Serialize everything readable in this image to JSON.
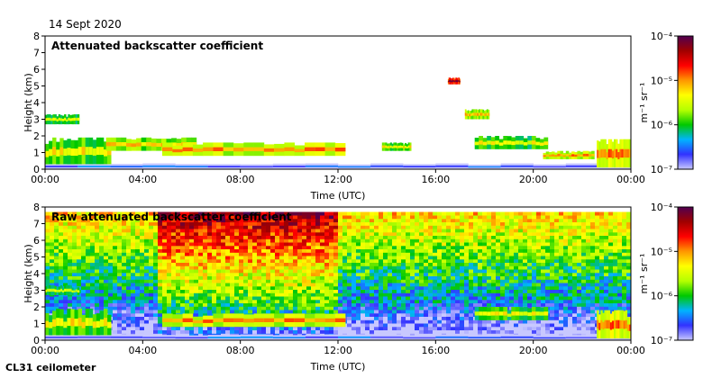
{
  "header": {
    "date": "14 Sept 2020"
  },
  "footer": {
    "instrument": "CL31 ceilometer"
  },
  "colors": {
    "scale": [
      "#c8c8ff",
      "#3232ff",
      "#00b4ff",
      "#00c800",
      "#b4ff00",
      "#ffff00",
      "#ff9600",
      "#ff0000",
      "#a00000",
      "#500050"
    ]
  },
  "chart_data": [
    {
      "type": "heatmap",
      "title": "Attenuated backscatter coefficient",
      "xlabel": "Time (UTC)",
      "ylabel": "Height (km)",
      "xlim": [
        0,
        24
      ],
      "ylim": [
        0,
        8
      ],
      "x_ticks": [
        "00:00",
        "04:00",
        "08:00",
        "12:00",
        "16:00",
        "20:00",
        "00:00"
      ],
      "y_ticks": [
        "0",
        "1",
        "2",
        "3",
        "4",
        "5",
        "6",
        "7",
        "8"
      ],
      "colorbar": {
        "label": "m⁻¹ sr⁻¹",
        "ticks": [
          "10⁻⁷",
          "10⁻⁶",
          "10⁻⁵",
          "10⁻⁴"
        ],
        "log_range": [
          -7,
          -4
        ]
      },
      "noise_fill": false,
      "layers": [
        {
          "name": "boundary layer aerosol",
          "t_start": 0.0,
          "t_end": 24.0,
          "h_base": 0.0,
          "h_top": 0.35,
          "log_value": -6.6
        },
        {
          "name": "low cloud 00-02",
          "t_start": 0.0,
          "t_end": 2.7,
          "h_base": 0.3,
          "h_top": 1.9,
          "log_value": -5.3
        },
        {
          "name": "cloud 00-01 at 3 km",
          "t_start": 0.0,
          "t_end": 1.4,
          "h_base": 2.7,
          "h_top": 3.3,
          "log_value": -5.5
        },
        {
          "name": "cloud 02-06 at 1.5 km",
          "t_start": 2.5,
          "t_end": 6.2,
          "h_base": 1.1,
          "h_top": 1.9,
          "log_value": -5.2
        },
        {
          "name": "cloud 05-12 at 1.2 km",
          "t_start": 4.8,
          "t_end": 12.3,
          "h_base": 0.8,
          "h_top": 1.6,
          "log_value": -5.0
        },
        {
          "name": "cloud 14 at 1.4 km",
          "t_start": 13.8,
          "t_end": 15.0,
          "h_base": 1.1,
          "h_top": 1.6,
          "log_value": -5.3
        },
        {
          "name": "cloud 16-17 at 5.4 km",
          "t_start": 16.5,
          "t_end": 17.0,
          "h_base": 5.1,
          "h_top": 5.5,
          "log_value": -4.2
        },
        {
          "name": "cloud 17 at 3.4 km",
          "t_start": 17.2,
          "t_end": 18.2,
          "h_base": 3.0,
          "h_top": 3.6,
          "log_value": -5.1
        },
        {
          "name": "cloud 18-20 at 1.7 km",
          "t_start": 17.6,
          "t_end": 20.6,
          "h_base": 1.2,
          "h_top": 2.0,
          "log_value": -5.4
        },
        {
          "name": "cloud 20-22 at 0.8 km",
          "t_start": 20.4,
          "t_end": 22.5,
          "h_base": 0.6,
          "h_top": 1.1,
          "log_value": -5.0
        },
        {
          "name": "low cloud 23-24",
          "t_start": 22.6,
          "t_end": 24.0,
          "h_base": 0.1,
          "h_top": 1.8,
          "log_value": -4.9
        }
      ]
    },
    {
      "type": "heatmap",
      "title": "Raw attenuated backscatter coefficient",
      "xlabel": "Time (UTC)",
      "ylabel": "Height (km)",
      "xlim": [
        0,
        24
      ],
      "ylim": [
        0,
        8
      ],
      "x_ticks": [
        "00:00",
        "04:00",
        "08:00",
        "12:00",
        "16:00",
        "20:00",
        "00:00"
      ],
      "y_ticks": [
        "0",
        "1",
        "2",
        "3",
        "4",
        "5",
        "6",
        "7",
        "8"
      ],
      "colorbar": {
        "label": "m⁻¹ sr⁻¹",
        "ticks": [
          "10⁻⁷",
          "10⁻⁶",
          "10⁻⁵",
          "10⁻⁴"
        ],
        "log_range": [
          -7,
          -4
        ]
      },
      "noise_fill": true,
      "noise_top_km": 7.7,
      "noisy_period": {
        "t_start": 4.7,
        "t_end": 12.0
      },
      "layers": [
        {
          "name": "boundary layer aerosol",
          "t_start": 0.0,
          "t_end": 24.0,
          "h_base": 0.0,
          "h_top": 0.35,
          "log_value": -6.6
        },
        {
          "name": "low cloud 00-02",
          "t_start": 0.0,
          "t_end": 2.7,
          "h_base": 0.3,
          "h_top": 1.9,
          "log_value": -5.3
        },
        {
          "name": "cloud 00-01 at 3 km",
          "t_start": 0.0,
          "t_end": 1.4,
          "h_base": 2.7,
          "h_top": 3.3,
          "log_value": -5.5
        },
        {
          "name": "cloud 05-12 at 1.2 km",
          "t_start": 4.8,
          "t_end": 12.3,
          "h_base": 0.8,
          "h_top": 1.6,
          "log_value": -5.0
        },
        {
          "name": "cloud 18-20 at 1.7 km",
          "t_start": 17.6,
          "t_end": 20.6,
          "h_base": 1.2,
          "h_top": 2.0,
          "log_value": -5.4
        },
        {
          "name": "low cloud 23-24",
          "t_start": 22.6,
          "t_end": 24.0,
          "h_base": 0.1,
          "h_top": 1.8,
          "log_value": -4.9
        }
      ]
    }
  ]
}
